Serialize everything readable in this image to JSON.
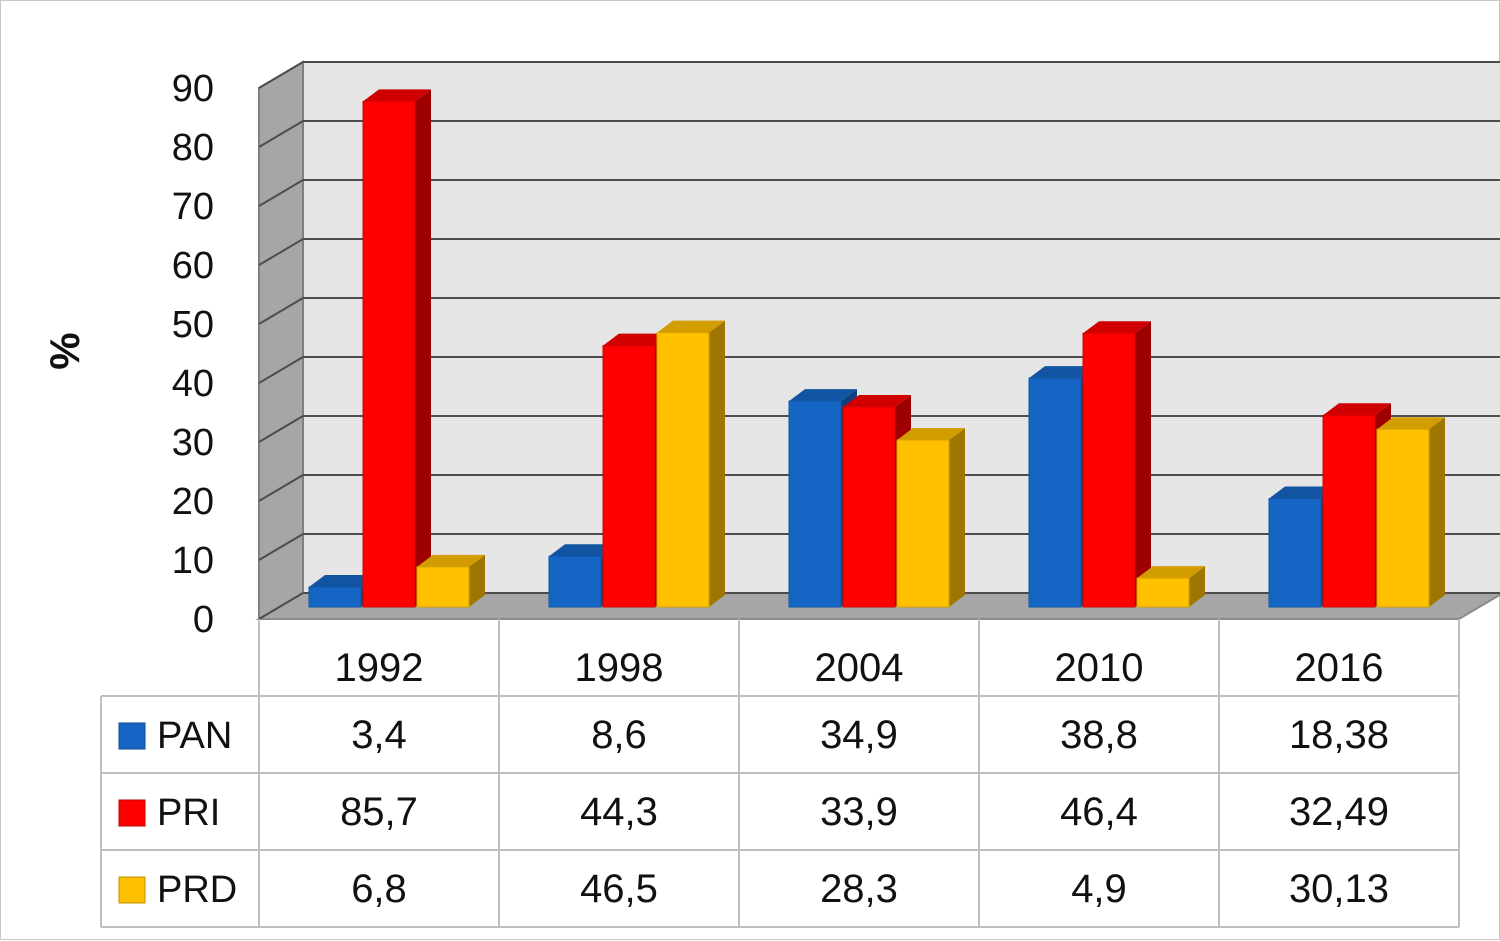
{
  "chart_data": {
    "type": "bar",
    "title": "",
    "xlabel": "",
    "ylabel": "%",
    "ylim": [
      0,
      90
    ],
    "yticks": [
      "0",
      "10",
      "20",
      "30",
      "40",
      "50",
      "60",
      "70",
      "80",
      "90"
    ],
    "grid": true,
    "legend": "data-table-left",
    "categories": [
      "1992",
      "1998",
      "2004",
      "2010",
      "2016"
    ],
    "series": [
      {
        "name": "PAN",
        "color": "#1566c4",
        "values": [
          3.4,
          8.6,
          34.9,
          38.8,
          18.38
        ],
        "labels": [
          "3,4",
          "8,6",
          "34,9",
          "38,8",
          "18,38"
        ]
      },
      {
        "name": "PRI",
        "color": "#ff0000",
        "values": [
          85.7,
          44.3,
          33.9,
          46.4,
          32.49
        ],
        "labels": [
          "85,7",
          "44,3",
          "33,9",
          "46,4",
          "32,49"
        ]
      },
      {
        "name": "PRD",
        "color": "#ffc000",
        "values": [
          6.8,
          46.5,
          28.3,
          4.9,
          30.13
        ],
        "labels": [
          "6,8",
          "46,5",
          "28,3",
          "4,9",
          "30,13"
        ]
      }
    ]
  }
}
